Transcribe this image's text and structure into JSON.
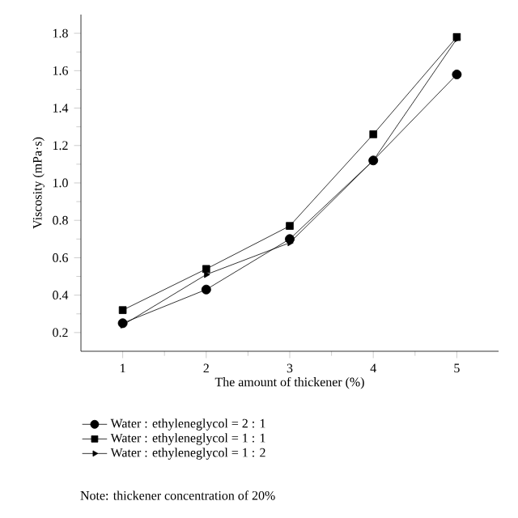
{
  "chart_data": {
    "type": "line",
    "xlabel": "The amount of thickener (%)",
    "ylabel": "Viscosity (mPa·s)",
    "x": [
      1,
      2,
      3,
      4,
      5
    ],
    "series": [
      {
        "name": "Water : ethyleneglycol = 2 : 1",
        "color": "#000000",
        "marker": "circle",
        "values": [
          0.25,
          0.43,
          0.7,
          1.12,
          1.58
        ]
      },
      {
        "name": "Water : ethyleneglycol = 1 : 1",
        "color": "#000000",
        "marker": "square",
        "values": [
          0.32,
          0.54,
          0.77,
          1.26,
          1.78
        ]
      },
      {
        "name": "Water : ethyleneglycol = 1 : 2",
        "color": "#000000",
        "marker": "triangle",
        "values": [
          0.24,
          0.51,
          0.68,
          1.12,
          1.77
        ]
      }
    ],
    "xlim": [
      0.5,
      5.5
    ],
    "ylim": [
      0.1,
      1.9
    ],
    "xticks": [
      1,
      2,
      3,
      4,
      5
    ],
    "yticks": [
      0.2,
      0.4,
      0.6,
      0.8,
      {
        "value": 1.0,
        "label": "1.0"
      },
      1.2,
      1.4,
      1.6,
      1.8
    ],
    "legend": "bottom",
    "grid": false,
    "line_style": "solid",
    "annotations": [
      "Note: thickener concentration of 20%"
    ]
  }
}
